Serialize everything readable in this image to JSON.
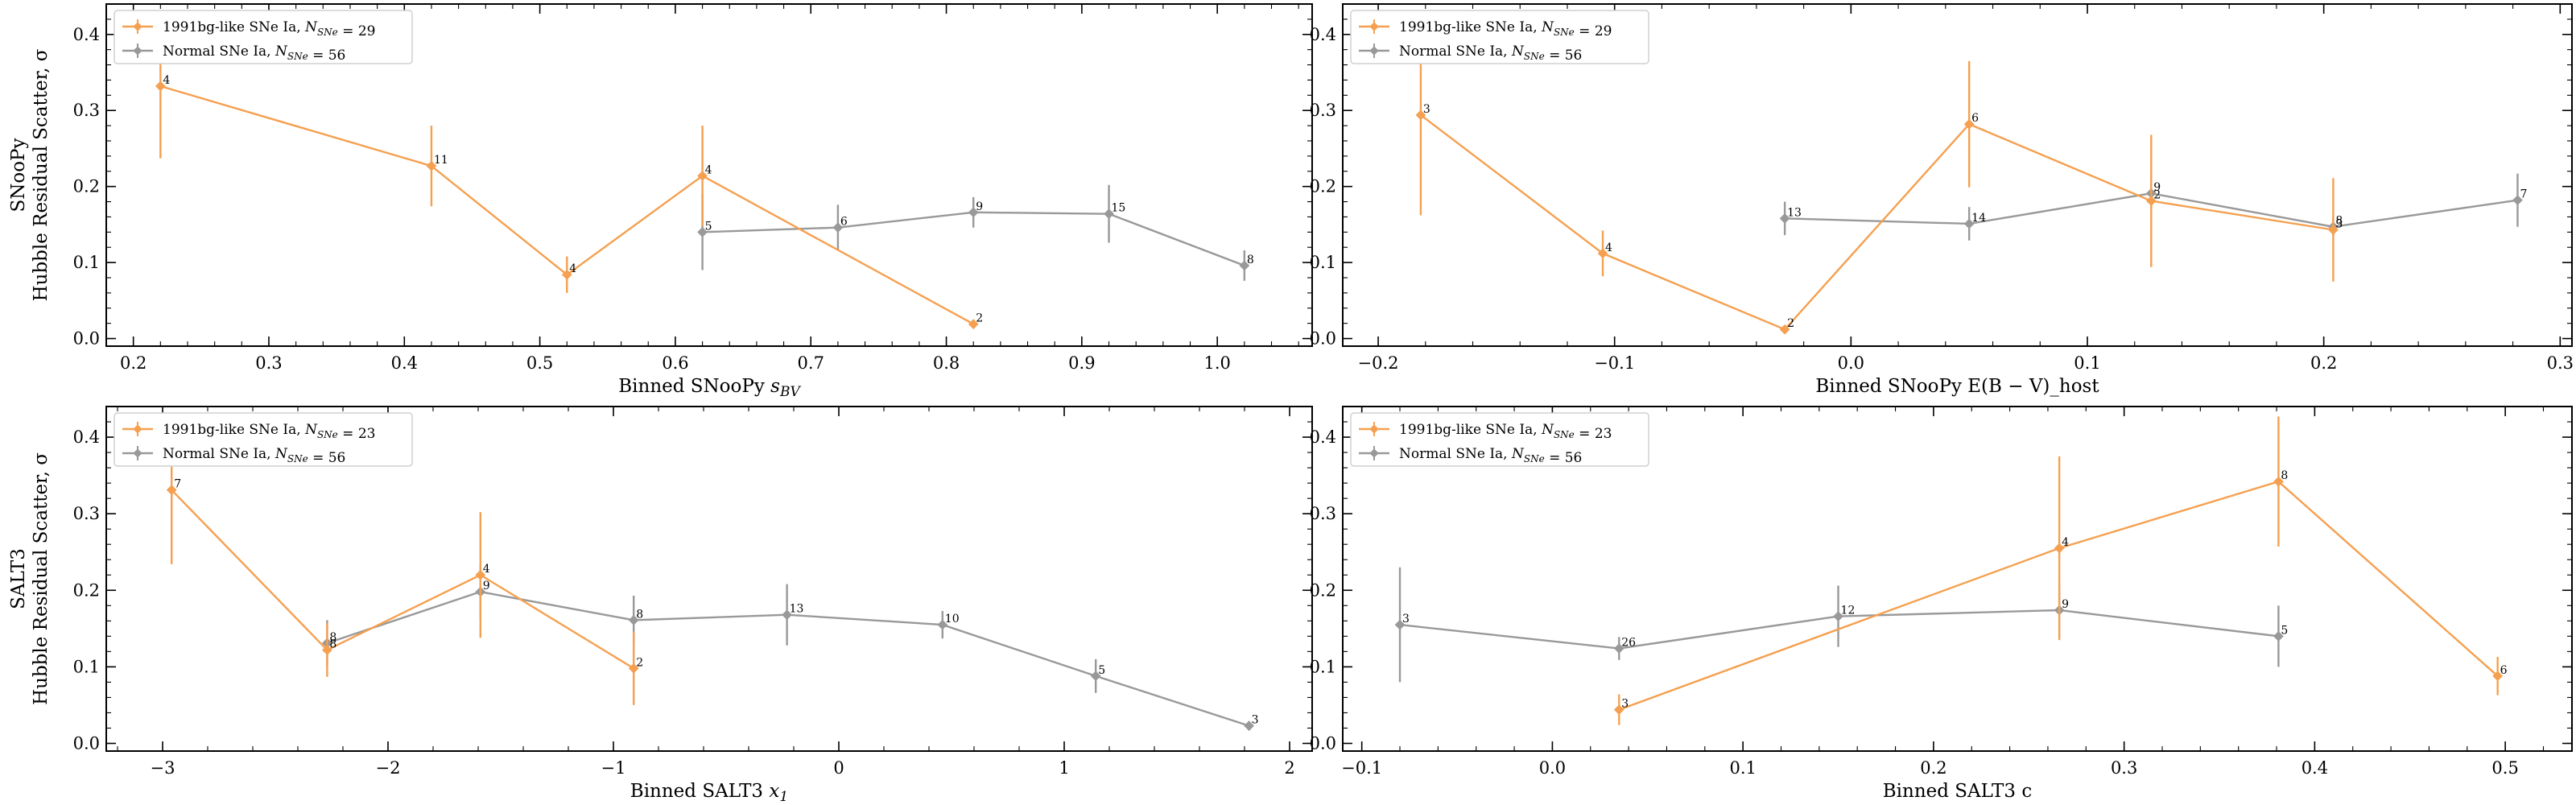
{
  "colors": {
    "bg_1991": "#f5a050",
    "normal": "#999999"
  },
  "chart_data": [
    {
      "type": "line",
      "xlabel": "Binned SNooPy s_BV",
      "ylabel": [
        "SNooPy",
        "Hubble Residual Scatter, σ"
      ],
      "xlim": [
        0.18,
        1.07
      ],
      "ylim": [
        -0.01,
        0.44
      ],
      "xticks": [
        0.2,
        0.3,
        0.4,
        0.5,
        0.6,
        0.7,
        0.8,
        0.9,
        1.0
      ],
      "xticklabels": [
        "0.2",
        "0.3",
        "0.4",
        "0.5",
        "0.6",
        "0.7",
        "0.8",
        "0.9",
        "1.0"
      ],
      "xminor_step": 0.02,
      "yticks": [
        0.0,
        0.1,
        0.2,
        0.3,
        0.4
      ],
      "yticklabels": [
        "0.0",
        "0.1",
        "0.2",
        "0.3",
        "0.4"
      ],
      "yminor_step": 0.02,
      "legend": "top-left",
      "series": [
        {
          "name": "1991bg-like SNe Ia, N_SNe = 29",
          "color_key": "bg_1991",
          "x": [
            0.22,
            0.42,
            0.52,
            0.62,
            0.82
          ],
          "y": [
            0.332,
            0.227,
            0.084,
            0.214,
            0.019
          ],
          "err": [
            0.095,
            0.053,
            0.024,
            0.066,
            0.006
          ],
          "labels": [
            "4",
            "11",
            "4",
            "4",
            "2"
          ]
        },
        {
          "name": "Normal SNe Ia, N_SNe = 56",
          "color_key": "normal",
          "x": [
            0.62,
            0.72,
            0.82,
            0.92,
            1.02
          ],
          "y": [
            0.14,
            0.146,
            0.166,
            0.164,
            0.096
          ],
          "err": [
            0.05,
            0.03,
            0.02,
            0.038,
            0.02
          ],
          "labels": [
            "5",
            "6",
            "9",
            "15",
            "8"
          ]
        }
      ]
    },
    {
      "type": "line",
      "xlabel": "Binned SNooPy E(B − V)_host",
      "ylabel": [],
      "xlim": [
        -0.215,
        0.305
      ],
      "ylim": [
        -0.01,
        0.44
      ],
      "xticks": [
        -0.2,
        -0.1,
        0.0,
        0.1,
        0.2,
        0.3
      ],
      "xticklabels": [
        "−0.2",
        "−0.1",
        "0.0",
        "0.1",
        "0.2",
        "0.3"
      ],
      "xminor_step": 0.02,
      "yticks": [
        0.0,
        0.1,
        0.2,
        0.3,
        0.4
      ],
      "yticklabels": [
        "0.0",
        "0.1",
        "0.2",
        "0.3",
        "0.4"
      ],
      "yminor_step": 0.02,
      "legend": "top-left",
      "series": [
        {
          "name": "1991bg-like SNe Ia, N_SNe = 29",
          "color_key": "bg_1991",
          "x": [
            -0.182,
            -0.105,
            -0.028,
            0.05,
            0.127,
            0.204
          ],
          "y": [
            0.294,
            0.112,
            0.012,
            0.282,
            0.181,
            0.143
          ],
          "err": [
            0.132,
            0.03,
            0.004,
            0.083,
            0.087,
            0.068
          ],
          "labels": [
            "3",
            "4",
            "2",
            "6",
            "2",
            "3"
          ]
        },
        {
          "name": "Normal SNe Ia, N_SNe = 56",
          "color_key": "normal",
          "x": [
            -0.028,
            0.05,
            0.127,
            0.204,
            0.282
          ],
          "y": [
            0.158,
            0.151,
            0.191,
            0.147,
            0.182
          ],
          "err": [
            0.022,
            0.022,
            0.02,
            0.012,
            0.035
          ],
          "labels": [
            "13",
            "14",
            "9",
            "8",
            "7"
          ]
        }
      ]
    },
    {
      "type": "line",
      "xlabel": "Binned SALT3 x_1",
      "ylabel": [
        "SALT3",
        "Hubble Residual Scatter, σ"
      ],
      "xlim": [
        -3.25,
        2.1
      ],
      "ylim": [
        -0.01,
        0.44
      ],
      "xticks": [
        -3,
        -2,
        -1,
        0,
        1,
        2
      ],
      "xticklabels": [
        "−3",
        "−2",
        "−1",
        "0",
        "1",
        "2"
      ],
      "xminor_step": 0.2,
      "yticks": [
        0.0,
        0.1,
        0.2,
        0.3,
        0.4
      ],
      "yticklabels": [
        "0.0",
        "0.1",
        "0.2",
        "0.3",
        "0.4"
      ],
      "yminor_step": 0.02,
      "legend": "top-left",
      "series": [
        {
          "name": "1991bg-like SNe Ia, N_SNe = 23",
          "color_key": "bg_1991",
          "x": [
            -2.96,
            -2.27,
            -1.59,
            -0.91
          ],
          "y": [
            0.331,
            0.122,
            0.22,
            0.098
          ],
          "err": [
            0.097,
            0.035,
            0.082,
            0.048
          ],
          "labels": [
            "7",
            "8",
            "4",
            "2"
          ]
        },
        {
          "name": "Normal SNe Ia, N_SNe = 56",
          "color_key": "normal",
          "x": [
            -2.27,
            -1.59,
            -0.91,
            -0.23,
            0.46,
            1.14,
            1.82
          ],
          "y": [
            0.131,
            0.198,
            0.161,
            0.168,
            0.155,
            0.088,
            0.023
          ],
          "err": [
            0.03,
            0.035,
            0.032,
            0.04,
            0.018,
            0.022,
            0.006
          ],
          "labels": [
            "8",
            "9",
            "8",
            "13",
            "10",
            "5",
            "3"
          ]
        }
      ]
    },
    {
      "type": "line",
      "xlabel": "Binned SALT3 c",
      "ylabel": [],
      "xlim": [
        -0.11,
        0.535
      ],
      "ylim": [
        -0.01,
        0.44
      ],
      "xticks": [
        -0.1,
        0.0,
        0.1,
        0.2,
        0.3,
        0.4,
        0.5
      ],
      "xticklabels": [
        "−0.1",
        "0.0",
        "0.1",
        "0.2",
        "0.3",
        "0.4",
        "0.5"
      ],
      "xminor_step": 0.02,
      "yticks": [
        0.0,
        0.1,
        0.2,
        0.3,
        0.4
      ],
      "yticklabels": [
        "0.0",
        "0.1",
        "0.2",
        "0.3",
        "0.4"
      ],
      "yminor_step": 0.02,
      "legend": "top-left",
      "series": [
        {
          "name": "1991bg-like SNe Ia, N_SNe = 23",
          "color_key": "bg_1991",
          "x": [
            0.035,
            0.266,
            0.381,
            0.496
          ],
          "y": [
            0.044,
            0.255,
            0.342,
            0.088
          ],
          "err": [
            0.02,
            0.12,
            0.085,
            0.025
          ],
          "labels": [
            "3",
            "4",
            "8",
            "6"
          ]
        },
        {
          "name": "Normal SNe Ia, N_SNe = 56",
          "color_key": "normal",
          "x": [
            -0.08,
            0.035,
            0.15,
            0.266,
            0.381
          ],
          "y": [
            0.155,
            0.124,
            0.166,
            0.174,
            0.14
          ],
          "err": [
            0.075,
            0.015,
            0.04,
            0.035,
            0.04
          ],
          "labels": [
            "3",
            "26",
            "12",
            "9",
            "5"
          ]
        }
      ]
    }
  ]
}
